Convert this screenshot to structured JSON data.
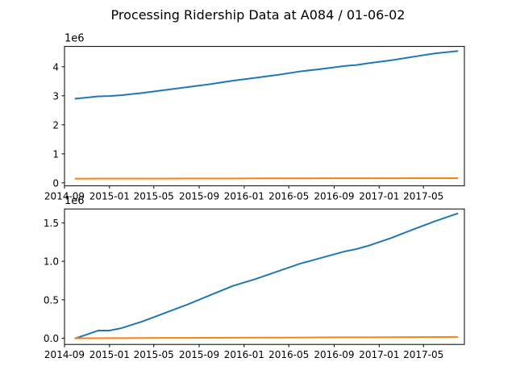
{
  "figure": {
    "suptitle": "Processing Ridership Data at A084 / 01-06-02"
  },
  "chart_data": [
    {
      "type": "line",
      "title": "",
      "xlabel": "",
      "ylabel": "",
      "y_offset_label": "1e6",
      "x": [
        "2014-10",
        "2014-11",
        "2014-12",
        "2015-01",
        "2015-02",
        "2015-04",
        "2015-06",
        "2015-08",
        "2015-10",
        "2015-12",
        "2016-02",
        "2016-04",
        "2016-06",
        "2016-08",
        "2016-10",
        "2016-11",
        "2016-12",
        "2017-02",
        "2017-04",
        "2017-06",
        "2017-08"
      ],
      "xlim": [
        "2014-09-01",
        "2017-08-20"
      ],
      "xticks": [
        "2014-09",
        "2015-01",
        "2015-05",
        "2015-09",
        "2016-01",
        "2016-05",
        "2016-09",
        "2017-01",
        "2017-05"
      ],
      "ylim": [
        -0.1,
        4.7
      ],
      "yticks": [
        0,
        1,
        2,
        3,
        4
      ],
      "grid": false,
      "series": [
        {
          "color": "#1f77b4",
          "values": [
            2.9,
            2.94,
            2.98,
            2.99,
            3.02,
            3.1,
            3.2,
            3.3,
            3.4,
            3.52,
            3.62,
            3.72,
            3.84,
            3.93,
            4.03,
            4.06,
            4.12,
            4.22,
            4.34,
            4.46,
            4.54
          ]
        },
        {
          "color": "#ff7f0e",
          "values": [
            0.145,
            0.145,
            0.146,
            0.146,
            0.147,
            0.148,
            0.149,
            0.15,
            0.151,
            0.152,
            0.153,
            0.154,
            0.155,
            0.156,
            0.157,
            0.157,
            0.158,
            0.159,
            0.16,
            0.161,
            0.162
          ]
        }
      ]
    },
    {
      "type": "line",
      "title": "",
      "xlabel": "",
      "ylabel": "",
      "y_offset_label": "1e6",
      "x": [
        "2014-10",
        "2014-11",
        "2014-12",
        "2015-01",
        "2015-02",
        "2015-04",
        "2015-06",
        "2015-08",
        "2015-10",
        "2015-12",
        "2016-02",
        "2016-04",
        "2016-06",
        "2016-08",
        "2016-10",
        "2016-11",
        "2016-12",
        "2017-02",
        "2017-04",
        "2017-06",
        "2017-08"
      ],
      "xlim": [
        "2014-09-01",
        "2017-08-20"
      ],
      "xticks": [
        "2014-09",
        "2015-01",
        "2015-05",
        "2015-09",
        "2016-01",
        "2016-05",
        "2016-09",
        "2017-01",
        "2017-05"
      ],
      "ylim": [
        -0.08,
        1.68
      ],
      "yticks": [
        0.0,
        0.5,
        1.0,
        1.5
      ],
      "ytick_labels": [
        "0.0",
        "0.5",
        "1.0",
        "1.5"
      ],
      "grid": false,
      "series": [
        {
          "color": "#1f77b4",
          "values": [
            0.0,
            0.05,
            0.1,
            0.1,
            0.13,
            0.22,
            0.33,
            0.44,
            0.56,
            0.68,
            0.77,
            0.87,
            0.97,
            1.05,
            1.13,
            1.16,
            1.2,
            1.3,
            1.41,
            1.52,
            1.62
          ]
        },
        {
          "color": "#ff7f0e",
          "values": [
            0.0,
            0.0005,
            0.001,
            0.0015,
            0.002,
            0.003,
            0.004,
            0.005,
            0.006,
            0.007,
            0.008,
            0.009,
            0.01,
            0.011,
            0.012,
            0.0125,
            0.013,
            0.014,
            0.015,
            0.016,
            0.017
          ]
        }
      ]
    }
  ]
}
